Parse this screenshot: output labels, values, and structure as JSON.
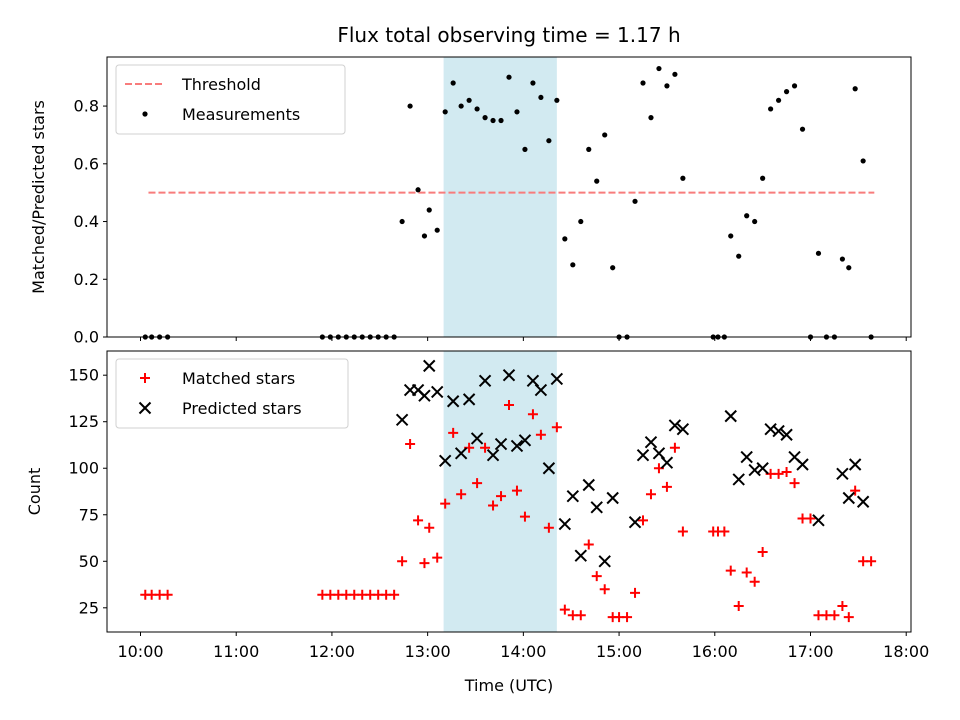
{
  "chart_data": {
    "type": "scatter",
    "title": "Flux total observing time = 1.17 h",
    "xlabel": "Time (UTC)",
    "x_ticks": [
      "10:00",
      "11:00",
      "12:00",
      "13:00",
      "14:00",
      "15:00",
      "16:00",
      "17:00",
      "18:00"
    ],
    "xlim": [
      "09:39",
      "18:03"
    ],
    "shaded_interval": {
      "start": "13:10",
      "end": "14:21",
      "color": "#add8e6"
    },
    "panels": [
      {
        "name": "ratio",
        "ylabel": "Matched/Predicted stars",
        "ylim": [
          0,
          0.97
        ],
        "y_ticks": [
          "0.0",
          "0.2",
          "0.4",
          "0.6",
          "0.8"
        ],
        "grid": false,
        "legend_position": "top-left",
        "threshold": {
          "name": "Threshold",
          "y": 0.5,
          "x_start": "10:05",
          "x_end": "17:40",
          "color": "#f87c7c",
          "style": "dashed"
        },
        "series": [
          {
            "name": "Measurements",
            "marker": "dot",
            "color": "#000000",
            "points": [
              [
                "10:03",
                0
              ],
              [
                "10:07",
                0
              ],
              [
                "10:12",
                0
              ],
              [
                "10:17",
                0
              ],
              [
                "11:54",
                0
              ],
              [
                "11:59",
                0
              ],
              [
                "12:04",
                0
              ],
              [
                "12:09",
                0
              ],
              [
                "12:14",
                0
              ],
              [
                "12:19",
                0
              ],
              [
                "12:24",
                0
              ],
              [
                "12:29",
                0
              ],
              [
                "12:34",
                0
              ],
              [
                "12:39",
                0
              ],
              [
                "12:44",
                0.4
              ],
              [
                "12:49",
                0.8
              ],
              [
                "12:54",
                0.51
              ],
              [
                "12:58",
                0.35
              ],
              [
                "13:01",
                0.44
              ],
              [
                "13:06",
                0.37
              ],
              [
                "13:11",
                0.78
              ],
              [
                "13:16",
                0.88
              ],
              [
                "13:21",
                0.8
              ],
              [
                "13:26",
                0.82
              ],
              [
                "13:31",
                0.79
              ],
              [
                "13:36",
                0.76
              ],
              [
                "13:41",
                0.75
              ],
              [
                "13:46",
                0.75
              ],
              [
                "13:51",
                0.9
              ],
              [
                "13:56",
                0.78
              ],
              [
                "14:01",
                0.65
              ],
              [
                "14:06",
                0.88
              ],
              [
                "14:11",
                0.83
              ],
              [
                "14:16",
                0.68
              ],
              [
                "14:21",
                0.82
              ],
              [
                "14:26",
                0.34
              ],
              [
                "14:31",
                0.25
              ],
              [
                "14:36",
                0.4
              ],
              [
                "14:41",
                0.65
              ],
              [
                "14:46",
                0.54
              ],
              [
                "14:51",
                0.7
              ],
              [
                "14:56",
                0.24
              ],
              [
                "15:00",
                0
              ],
              [
                "15:05",
                0
              ],
              [
                "15:10",
                0.47
              ],
              [
                "15:15",
                0.88
              ],
              [
                "15:20",
                0.76
              ],
              [
                "15:25",
                0.93
              ],
              [
                "15:30",
                0.87
              ],
              [
                "15:35",
                0.91
              ],
              [
                "15:40",
                0.55
              ],
              [
                "15:59",
                0
              ],
              [
                "16:02",
                0
              ],
              [
                "16:06",
                0
              ],
              [
                "16:10",
                0.35
              ],
              [
                "16:15",
                0.28
              ],
              [
                "16:20",
                0.42
              ],
              [
                "16:25",
                0.4
              ],
              [
                "16:30",
                0.55
              ],
              [
                "16:35",
                0.79
              ],
              [
                "16:40",
                0.82
              ],
              [
                "16:45",
                0.85
              ],
              [
                "16:50",
                0.87
              ],
              [
                "16:55",
                0.72
              ],
              [
                "17:00",
                0
              ],
              [
                "17:05",
                0.29
              ],
              [
                "17:10",
                0
              ],
              [
                "17:15",
                0
              ],
              [
                "17:20",
                0.27
              ],
              [
                "17:24",
                0.24
              ],
              [
                "17:28",
                0.86
              ],
              [
                "17:33",
                0.61
              ],
              [
                "17:38",
                0
              ]
            ]
          }
        ]
      },
      {
        "name": "count",
        "ylabel": "Count",
        "ylim": [
          12,
          163
        ],
        "y_ticks": [
          "25",
          "50",
          "75",
          "100",
          "125",
          "150"
        ],
        "grid": false,
        "legend_position": "top-left",
        "series": [
          {
            "name": "Matched stars",
            "marker": "plus",
            "color": "#ff0000",
            "points": [
              [
                "10:03",
                32
              ],
              [
                "10:07",
                32
              ],
              [
                "10:12",
                32
              ],
              [
                "10:17",
                32
              ],
              [
                "11:54",
                32
              ],
              [
                "11:59",
                32
              ],
              [
                "12:04",
                32
              ],
              [
                "12:09",
                32
              ],
              [
                "12:14",
                32
              ],
              [
                "12:19",
                32
              ],
              [
                "12:24",
                32
              ],
              [
                "12:29",
                32
              ],
              [
                "12:34",
                32
              ],
              [
                "12:39",
                32
              ],
              [
                "12:44",
                50
              ],
              [
                "12:49",
                113
              ],
              [
                "12:54",
                72
              ],
              [
                "12:58",
                49
              ],
              [
                "13:01",
                68
              ],
              [
                "13:06",
                52
              ],
              [
                "13:11",
                81
              ],
              [
                "13:16",
                119
              ],
              [
                "13:21",
                86
              ],
              [
                "13:26",
                111
              ],
              [
                "13:31",
                92
              ],
              [
                "13:36",
                111
              ],
              [
                "13:41",
                80
              ],
              [
                "13:46",
                85
              ],
              [
                "13:51",
                134
              ],
              [
                "13:56",
                88
              ],
              [
                "14:01",
                74
              ],
              [
                "14:06",
                129
              ],
              [
                "14:11",
                118
              ],
              [
                "14:16",
                68
              ],
              [
                "14:21",
                122
              ],
              [
                "14:26",
                24
              ],
              [
                "14:31",
                21
              ],
              [
                "14:36",
                21
              ],
              [
                "14:41",
                59
              ],
              [
                "14:46",
                42
              ],
              [
                "14:51",
                35
              ],
              [
                "14:56",
                20
              ],
              [
                "15:00",
                20
              ],
              [
                "15:05",
                20
              ],
              [
                "15:10",
                33
              ],
              [
                "15:15",
                72
              ],
              [
                "15:20",
                86
              ],
              [
                "15:25",
                100
              ],
              [
                "15:30",
                90
              ],
              [
                "15:35",
                111
              ],
              [
                "15:40",
                66
              ],
              [
                "15:59",
                66
              ],
              [
                "16:02",
                66
              ],
              [
                "16:06",
                66
              ],
              [
                "16:10",
                45
              ],
              [
                "16:15",
                26
              ],
              [
                "16:20",
                44
              ],
              [
                "16:25",
                39
              ],
              [
                "16:30",
                55
              ],
              [
                "16:35",
                97
              ],
              [
                "16:40",
                97
              ],
              [
                "16:45",
                98
              ],
              [
                "16:50",
                92
              ],
              [
                "16:55",
                73
              ],
              [
                "17:00",
                73
              ],
              [
                "17:05",
                21
              ],
              [
                "17:10",
                21
              ],
              [
                "17:15",
                21
              ],
              [
                "17:20",
                26
              ],
              [
                "17:24",
                20
              ],
              [
                "17:28",
                88
              ],
              [
                "17:33",
                50
              ],
              [
                "17:38",
                50
              ]
            ]
          },
          {
            "name": "Predicted stars",
            "marker": "x",
            "color": "#000000",
            "points": [
              [
                "12:44",
                126
              ],
              [
                "12:49",
                142
              ],
              [
                "12:54",
                142
              ],
              [
                "12:58",
                139
              ],
              [
                "13:01",
                155
              ],
              [
                "13:06",
                141
              ],
              [
                "13:11",
                104
              ],
              [
                "13:16",
                136
              ],
              [
                "13:21",
                108
              ],
              [
                "13:26",
                137
              ],
              [
                "13:31",
                116
              ],
              [
                "13:36",
                147
              ],
              [
                "13:41",
                107
              ],
              [
                "13:46",
                113
              ],
              [
                "13:51",
                150
              ],
              [
                "13:56",
                112
              ],
              [
                "14:01",
                115
              ],
              [
                "14:06",
                147
              ],
              [
                "14:11",
                142
              ],
              [
                "14:16",
                100
              ],
              [
                "14:21",
                148
              ],
              [
                "14:26",
                70
              ],
              [
                "14:31",
                85
              ],
              [
                "14:36",
                53
              ],
              [
                "14:41",
                91
              ],
              [
                "14:46",
                79
              ],
              [
                "14:51",
                50
              ],
              [
                "14:56",
                84
              ],
              [
                "15:10",
                71
              ],
              [
                "15:15",
                107
              ],
              [
                "15:20",
                114
              ],
              [
                "15:25",
                108
              ],
              [
                "15:30",
                103
              ],
              [
                "15:35",
                123
              ],
              [
                "15:40",
                121
              ],
              [
                "16:10",
                128
              ],
              [
                "16:15",
                94
              ],
              [
                "16:20",
                106
              ],
              [
                "16:25",
                99
              ],
              [
                "16:30",
                100
              ],
              [
                "16:35",
                121
              ],
              [
                "16:40",
                120
              ],
              [
                "16:45",
                118
              ],
              [
                "16:50",
                106
              ],
              [
                "16:55",
                102
              ],
              [
                "17:05",
                72
              ],
              [
                "17:20",
                97
              ],
              [
                "17:24",
                84
              ],
              [
                "17:28",
                102
              ],
              [
                "17:33",
                82
              ]
            ]
          }
        ]
      }
    ]
  }
}
